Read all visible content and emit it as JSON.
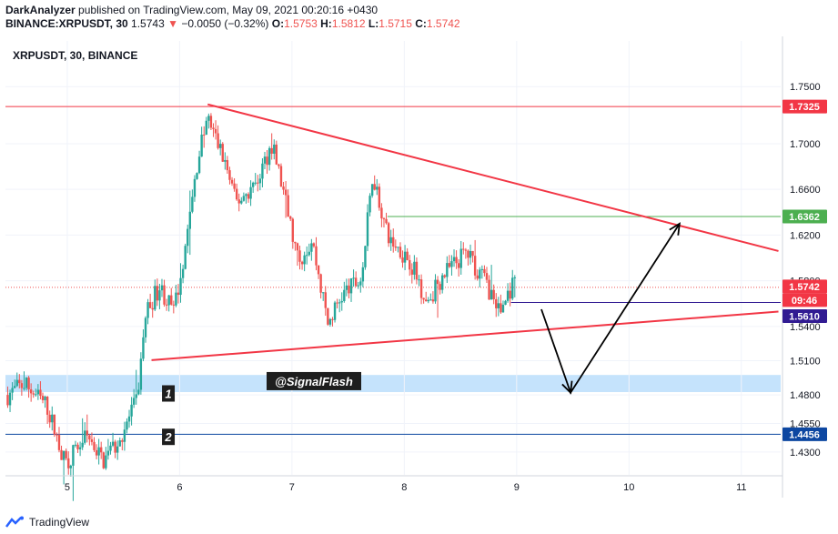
{
  "header": {
    "line1_prefix": "DarkAnalyzer",
    "line1_rest": " published on TradingView.com, May 09, 2021 00:20:16 +0430",
    "symbol_line": "BINANCE:XRPUSDT, 30",
    "last": "1.5743",
    "change": "−0.0050 (−0.32%)",
    "o_label": "O:",
    "o": "1.5753",
    "h_label": "H:",
    "h": "1.5812",
    "l_label": "L:",
    "l": "1.5715",
    "c_label": "C:",
    "c": "1.5742"
  },
  "chart_data": {
    "type": "candlestick",
    "title": "XRPUSDT, 30, BINANCE",
    "ylim": [
      1.41,
      1.79
    ],
    "xlim": [
      4.45,
      11.35
    ],
    "x_ticks": [
      "5",
      "6",
      "7",
      "8",
      "9",
      "10",
      "11"
    ],
    "x_tick_values": [
      5,
      6,
      7,
      8,
      9,
      10,
      11
    ],
    "y_ticks": [
      "1.7500",
      "1.7000",
      "1.6600",
      "1.6200",
      "1.5800",
      "1.5400",
      "1.5100",
      "1.4800",
      "1.4550",
      "1.4300"
    ],
    "y_tick_values": [
      1.75,
      1.7,
      1.66,
      1.62,
      1.58,
      1.54,
      1.51,
      1.48,
      1.455,
      1.43
    ],
    "price_labels": [
      {
        "text": "1.7325",
        "value": 1.7325,
        "color": "#f23645"
      },
      {
        "text": "1.6362",
        "value": 1.6362,
        "color": "#4caf50"
      },
      {
        "text": "1.5742",
        "value": 1.5742,
        "color": "#f23645"
      },
      {
        "text": "09:46",
        "value": 1.5742,
        "color": "#f23645"
      },
      {
        "text": "1.5610",
        "value": 1.561,
        "color": "#311b92"
      },
      {
        "text": "1.4456",
        "value": 1.4456,
        "color": "#0d47a1"
      }
    ],
    "horizontal_lines": [
      {
        "value": 1.7325,
        "color": "#f23645",
        "from": 4.45,
        "to": 11.35
      },
      {
        "value": 1.4456,
        "color": "#0d47a1",
        "from": 4.45,
        "to": 11.35
      },
      {
        "value": 1.6362,
        "color": "#4caf50",
        "from": 7.85,
        "to": 11.35
      },
      {
        "value": 1.561,
        "color": "#311b92",
        "from": 8.95,
        "to": 11.35
      }
    ],
    "trendlines": [
      {
        "name": "upper",
        "x1": 6.25,
        "y1": 1.7345,
        "x2": 11.33,
        "y2": 1.606,
        "color": "#f23645"
      },
      {
        "name": "lower",
        "x1": 5.75,
        "y1": 1.5105,
        "x2": 11.33,
        "y2": 1.553,
        "color": "#f23645"
      }
    ],
    "zone": {
      "low": 1.4825,
      "high": 1.4975,
      "color": "#bbdefb"
    },
    "zone_labels": [
      {
        "text": "1",
        "x": 5.9,
        "y": 1.4805
      },
      {
        "text": "2",
        "x": 5.9,
        "y": 1.4425
      }
    ],
    "watermark": "@SignalFlash",
    "projection": {
      "points": [
        [
          9.22,
          1.555
        ],
        [
          9.48,
          1.482
        ],
        [
          10.45,
          1.63
        ]
      ],
      "color": "#000000"
    },
    "path_anchors": [
      [
        4.47,
        1.48
      ],
      [
        4.62,
        1.49
      ],
      [
        4.82,
        1.47
      ],
      [
        4.98,
        1.42
      ],
      [
        5.18,
        1.445
      ],
      [
        5.32,
        1.422
      ],
      [
        5.47,
        1.442
      ],
      [
        5.62,
        1.475
      ],
      [
        5.7,
        1.552
      ],
      [
        5.82,
        1.575
      ],
      [
        5.95,
        1.552
      ],
      [
        6.08,
        1.628
      ],
      [
        6.17,
        1.692
      ],
      [
        6.25,
        1.722
      ],
      [
        6.4,
        1.685
      ],
      [
        6.5,
        1.648
      ],
      [
        6.68,
        1.665
      ],
      [
        6.82,
        1.7
      ],
      [
        6.93,
        1.655
      ],
      [
        7.05,
        1.598
      ],
      [
        7.18,
        1.615
      ],
      [
        7.32,
        1.542
      ],
      [
        7.45,
        1.568
      ],
      [
        7.62,
        1.582
      ],
      [
        7.72,
        1.675
      ],
      [
        7.85,
        1.618
      ],
      [
        8.05,
        1.598
      ],
      [
        8.2,
        1.562
      ],
      [
        8.35,
        1.585
      ],
      [
        8.55,
        1.605
      ],
      [
        8.72,
        1.58
      ],
      [
        8.85,
        1.552
      ],
      [
        8.95,
        1.574
      ],
      [
        9.0,
        1.5742
      ]
    ]
  },
  "footer": {
    "brand": "TradingView"
  },
  "colors": {
    "up": "#26a69a",
    "down": "#ef5350"
  }
}
